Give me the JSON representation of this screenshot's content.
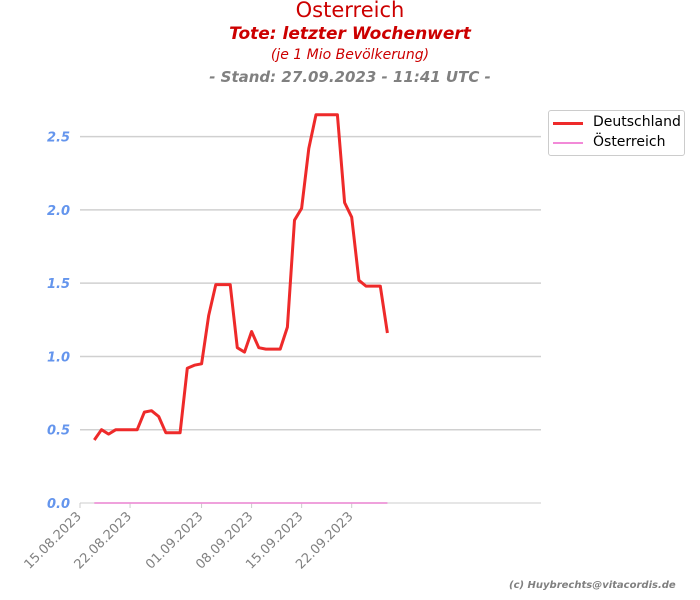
{
  "chart_data": {
    "type": "line",
    "title": "Österreich",
    "subtitle": "Tote: letzter Wochenwert",
    "subtitle2": "(je 1 Mio Bevölkerung)",
    "subtitle3": "- Stand: 27.09.2023 - 11:41 UTC -",
    "xlabel": "",
    "ylabel": "",
    "ylim": [
      0,
      2.75
    ],
    "yticks": [
      "0.0",
      "0.5",
      "1.0",
      "1.5",
      "2.0",
      "2.5"
    ],
    "xticks": [
      "15.08.2023",
      "22.08.2023",
      "01.09.2023",
      "08.09.2023",
      "15.09.2023",
      "22.09.2023"
    ],
    "grid": "horizontal",
    "legend_position": "top-right outside",
    "series": [
      {
        "name": "Deutschland",
        "color": "#ee2a2a",
        "x": [
          "2023-08-17",
          "2023-08-18",
          "2023-08-19",
          "2023-08-20",
          "2023-08-21",
          "2023-08-22",
          "2023-08-23",
          "2023-08-24",
          "2023-08-25",
          "2023-08-26",
          "2023-08-27",
          "2023-08-28",
          "2023-08-29",
          "2023-08-30",
          "2023-08-31",
          "2023-09-01",
          "2023-09-02",
          "2023-09-03",
          "2023-09-04",
          "2023-09-05",
          "2023-09-06",
          "2023-09-07",
          "2023-09-08",
          "2023-09-09",
          "2023-09-10",
          "2023-09-11",
          "2023-09-12",
          "2023-09-13",
          "2023-09-14",
          "2023-09-15",
          "2023-09-16",
          "2023-09-17",
          "2023-09-18",
          "2023-09-19",
          "2023-09-20",
          "2023-09-21",
          "2023-09-22",
          "2023-09-23",
          "2023-09-24",
          "2023-09-25",
          "2023-09-26",
          "2023-09-27"
        ],
        "values": [
          0.43,
          0.5,
          0.47,
          0.5,
          0.5,
          0.5,
          0.5,
          0.62,
          0.63,
          0.59,
          0.48,
          0.48,
          0.48,
          0.92,
          0.94,
          0.95,
          1.28,
          1.49,
          1.49,
          1.49,
          1.06,
          1.03,
          1.17,
          1.06,
          1.05,
          1.05,
          1.05,
          1.2,
          1.93,
          2.01,
          2.42,
          2.65,
          2.65,
          2.65,
          2.65,
          2.05,
          1.95,
          1.52,
          1.48,
          1.48,
          1.48,
          1.16
        ]
      },
      {
        "name": "Österreich",
        "color": "#f28ad8",
        "x": [
          "2023-08-17",
          "2023-09-27"
        ],
        "values": [
          0,
          0
        ]
      }
    ]
  },
  "credit": "(c) Huybrechts@vitacordis.de"
}
